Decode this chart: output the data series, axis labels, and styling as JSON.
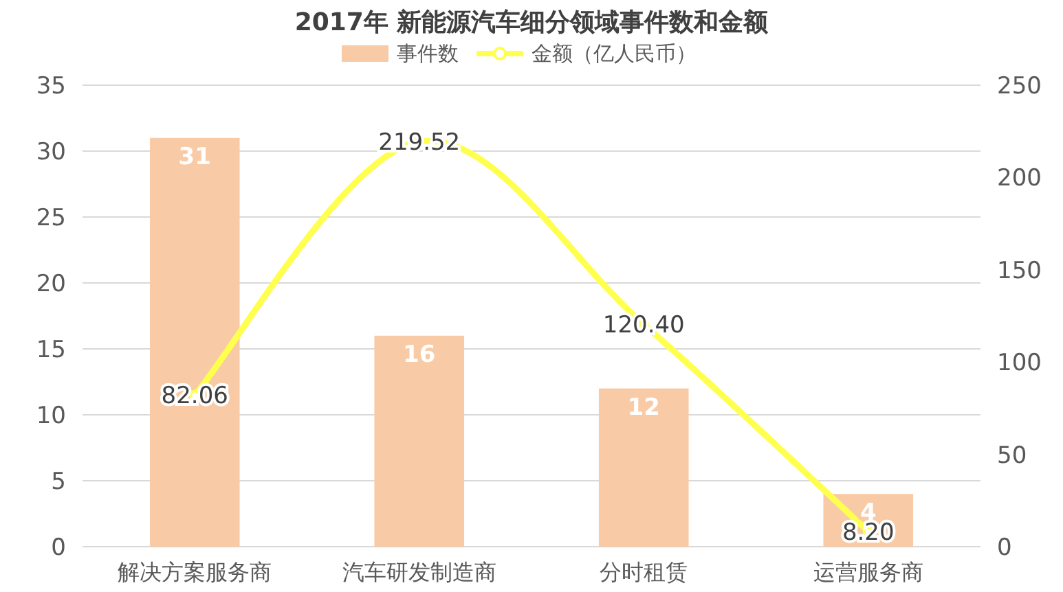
{
  "chart_data": {
    "type": "bar",
    "title": "2017年 新能源汽车细分领域事件数和金额",
    "categories": [
      "解决方案服务商",
      "汽车研发制造商",
      "分时租赁",
      "运营服务商"
    ],
    "series": [
      {
        "name": "事件数",
        "color": "#f8cba6",
        "values": [
          31,
          16,
          12,
          4
        ],
        "value_labels": [
          "31",
          "16",
          "12",
          "4"
        ]
      },
      {
        "name": "金额（亿人民币）",
        "type": "line",
        "axis": "y2",
        "color": "#ffff4d",
        "marker": "circle",
        "values": [
          82.06,
          219.52,
          120.4,
          8.2
        ],
        "value_labels": [
          "82.06",
          "219.52",
          "120.40",
          "8.20"
        ]
      }
    ],
    "ylim": [
      0,
      35
    ],
    "yticks": [
      0,
      5,
      10,
      15,
      20,
      25,
      30,
      35
    ],
    "y2lim": [
      0,
      250
    ],
    "y2ticks": [
      0,
      50,
      100,
      150,
      200,
      250
    ],
    "grid": "y",
    "legend": "top"
  }
}
